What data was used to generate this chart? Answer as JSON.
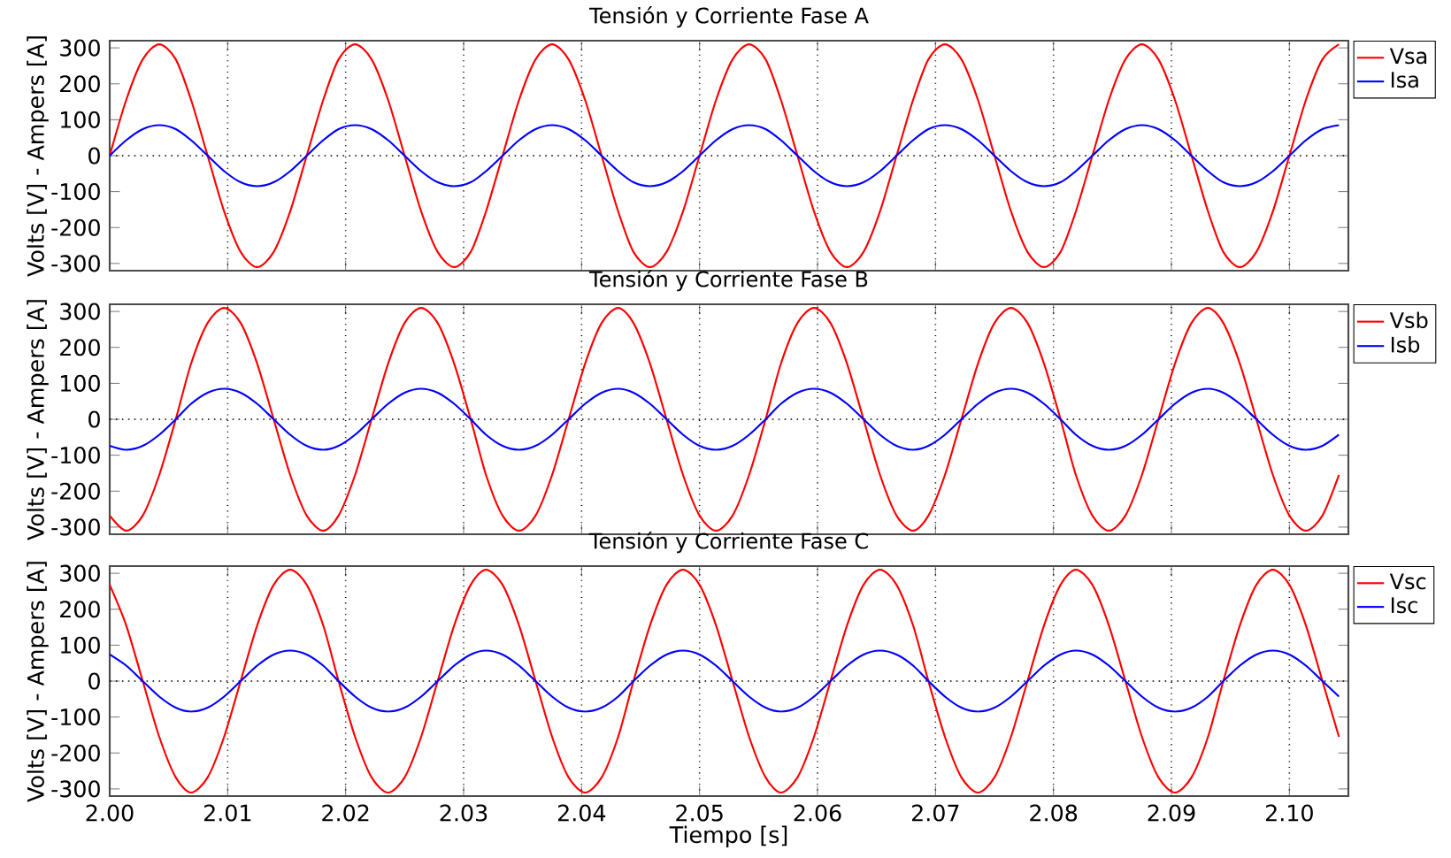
{
  "chart_data": [
    {
      "type": "line",
      "title": "Tensión y Corriente Fase A",
      "ylabel": "Volts [V] - Ampers [A]",
      "xticks": [
        2.0,
        2.01,
        2.02,
        2.03,
        2.04,
        2.05,
        2.06,
        2.07,
        2.08,
        2.09,
        2.1
      ],
      "x": [
        2.0,
        2.0014,
        2.0028,
        2.0042,
        2.0056,
        2.0069,
        2.0083,
        2.0097,
        2.0111,
        2.0125,
        2.0139,
        2.0153,
        2.0167,
        2.0181,
        2.0194,
        2.0208,
        2.0222,
        2.0236,
        2.025,
        2.0264,
        2.0278,
        2.0292,
        2.0306,
        2.0319,
        2.0333,
        2.0347,
        2.0361,
        2.0375,
        2.0389,
        2.0403,
        2.0417,
        2.0431,
        2.0444,
        2.0458,
        2.0472,
        2.0486,
        2.05,
        2.0514,
        2.0528,
        2.0542,
        2.0556,
        2.0569,
        2.0583,
        2.0597,
        2.0611,
        2.0625,
        2.0639,
        2.0653,
        2.0667,
        2.0681,
        2.0694,
        2.0708,
        2.0722,
        2.0736,
        2.075,
        2.0764,
        2.0778,
        2.0792,
        2.0806,
        2.0819,
        2.0833,
        2.0847,
        2.0861,
        2.0875,
        2.0889,
        2.0903,
        2.0917,
        2.0931,
        2.0944,
        2.0958,
        2.0972,
        2.0986,
        2.1,
        2.1014,
        2.1028,
        2.1042
      ],
      "series": [
        {
          "name": "Vsa",
          "color": "#ff0000",
          "values": [
            0,
            155,
            268,
            310,
            268,
            155,
            0,
            -155,
            -268,
            -310,
            -268,
            -155,
            0,
            155,
            268,
            310,
            268,
            155,
            0,
            -155,
            -268,
            -310,
            -268,
            -155,
            0,
            155,
            268,
            310,
            268,
            155,
            0,
            -155,
            -268,
            -310,
            -268,
            -155,
            0,
            155,
            268,
            310,
            268,
            155,
            0,
            -155,
            -268,
            -310,
            -268,
            -155,
            0,
            155,
            268,
            310,
            268,
            155,
            0,
            -155,
            -268,
            -310,
            -268,
            -155,
            0,
            155,
            268,
            310,
            268,
            155,
            0,
            -155,
            -268,
            -310,
            -268,
            -155,
            0,
            155,
            268,
            310
          ]
        },
        {
          "name": "Isa",
          "color": "#0000ff",
          "values": [
            0,
            43,
            74,
            85,
            74,
            43,
            0,
            -43,
            -74,
            -85,
            -74,
            -43,
            0,
            43,
            74,
            85,
            74,
            43,
            0,
            -43,
            -74,
            -85,
            -74,
            -43,
            0,
            43,
            74,
            85,
            74,
            43,
            0,
            -43,
            -74,
            -85,
            -74,
            -43,
            0,
            43,
            74,
            85,
            74,
            43,
            0,
            -43,
            -74,
            -85,
            -74,
            -43,
            0,
            43,
            74,
            85,
            74,
            43,
            0,
            -43,
            -74,
            -85,
            -74,
            -43,
            0,
            43,
            74,
            85,
            74,
            43,
            0,
            -43,
            -74,
            -85,
            -74,
            -43,
            0,
            43,
            74,
            85
          ]
        }
      ],
      "xlim": [
        2.0,
        2.105
      ],
      "ylim": [
        -320,
        320
      ],
      "yticks": [
        -300,
        -200,
        -100,
        0,
        100,
        200,
        300
      ],
      "grid": "x",
      "legend": "top right",
      "tick_labels": "y",
      "ref_lines": [
        {
          "axis": "y",
          "value": 0,
          "label": null,
          "line_style": "dotted",
          "color": "#000000"
        }
      ]
    },
    {
      "type": "line",
      "title": "Tensión y Corriente Fase B",
      "ylabel": "Volts [V] - Ampers [A]",
      "xticks": [
        2.0,
        2.01,
        2.02,
        2.03,
        2.04,
        2.05,
        2.06,
        2.07,
        2.08,
        2.09,
        2.1
      ],
      "x": [
        2.0,
        2.0014,
        2.0028,
        2.0042,
        2.0056,
        2.0069,
        2.0083,
        2.0097,
        2.0111,
        2.0125,
        2.0139,
        2.0153,
        2.0167,
        2.0181,
        2.0194,
        2.0208,
        2.0222,
        2.0236,
        2.025,
        2.0264,
        2.0278,
        2.0292,
        2.0306,
        2.0319,
        2.0333,
        2.0347,
        2.0361,
        2.0375,
        2.0389,
        2.0403,
        2.0417,
        2.0431,
        2.0444,
        2.0458,
        2.0472,
        2.0486,
        2.05,
        2.0514,
        2.0528,
        2.0542,
        2.0556,
        2.0569,
        2.0583,
        2.0597,
        2.0611,
        2.0625,
        2.0639,
        2.0653,
        2.0667,
        2.0681,
        2.0694,
        2.0708,
        2.0722,
        2.0736,
        2.075,
        2.0764,
        2.0778,
        2.0792,
        2.0806,
        2.0819,
        2.0833,
        2.0847,
        2.0861,
        2.0875,
        2.0889,
        2.0903,
        2.0917,
        2.0931,
        2.0944,
        2.0958,
        2.0972,
        2.0986,
        2.1,
        2.1014,
        2.1028,
        2.1042
      ],
      "series": [
        {
          "name": "Vsb",
          "color": "#ff0000",
          "values": [
            -268,
            -310,
            -268,
            -155,
            0,
            155,
            268,
            310,
            268,
            155,
            0,
            -155,
            -268,
            -310,
            -268,
            -155,
            0,
            155,
            268,
            310,
            268,
            155,
            0,
            -155,
            -268,
            -310,
            -268,
            -155,
            0,
            155,
            268,
            310,
            268,
            155,
            0,
            -155,
            -268,
            -310,
            -268,
            -155,
            0,
            155,
            268,
            310,
            268,
            155,
            0,
            -155,
            -268,
            -310,
            -268,
            -155,
            0,
            155,
            268,
            310,
            268,
            155,
            0,
            -155,
            -268,
            -310,
            -268,
            -155,
            0,
            155,
            268,
            310,
            268,
            155,
            0,
            -155,
            -268,
            -310,
            -268,
            -155
          ]
        },
        {
          "name": "Isb",
          "color": "#0000ff",
          "values": [
            -74,
            -85,
            -74,
            -43,
            0,
            43,
            74,
            85,
            74,
            43,
            0,
            -43,
            -74,
            -85,
            -74,
            -43,
            0,
            43,
            74,
            85,
            74,
            43,
            0,
            -43,
            -74,
            -85,
            -74,
            -43,
            0,
            43,
            74,
            85,
            74,
            43,
            0,
            -43,
            -74,
            -85,
            -74,
            -43,
            0,
            43,
            74,
            85,
            74,
            43,
            0,
            -43,
            -74,
            -85,
            -74,
            -43,
            0,
            43,
            74,
            85,
            74,
            43,
            0,
            -43,
            -74,
            -85,
            -74,
            -43,
            0,
            43,
            74,
            85,
            74,
            43,
            0,
            -43,
            -74,
            -85,
            -74,
            -43
          ]
        }
      ],
      "xlim": [
        2.0,
        2.105
      ],
      "ylim": [
        -320,
        320
      ],
      "yticks": [
        -300,
        -200,
        -100,
        0,
        100,
        200,
        300
      ],
      "grid": "x",
      "legend": "top right",
      "tick_labels": "y",
      "ref_lines": [
        {
          "axis": "y",
          "value": 0,
          "label": null,
          "line_style": "dotted",
          "color": "#000000"
        }
      ]
    },
    {
      "type": "line",
      "title": "Tensión y Corriente Fase C",
      "ylabel": "Volts [V] - Ampers [A]",
      "xlabel": "Tiempo [s]",
      "x": [
        2.0,
        2.0014,
        2.0028,
        2.0042,
        2.0056,
        2.0069,
        2.0083,
        2.0097,
        2.0111,
        2.0125,
        2.0139,
        2.0153,
        2.0167,
        2.0181,
        2.0194,
        2.0208,
        2.0222,
        2.0236,
        2.025,
        2.0264,
        2.0278,
        2.0292,
        2.0306,
        2.0319,
        2.0333,
        2.0347,
        2.0361,
        2.0375,
        2.0389,
        2.0403,
        2.0417,
        2.0431,
        2.0444,
        2.0458,
        2.0472,
        2.0486,
        2.05,
        2.0514,
        2.0528,
        2.0542,
        2.0556,
        2.0569,
        2.0583,
        2.0597,
        2.0611,
        2.0625,
        2.0639,
        2.0653,
        2.0667,
        2.0681,
        2.0694,
        2.0708,
        2.0722,
        2.0736,
        2.075,
        2.0764,
        2.0778,
        2.0792,
        2.0806,
        2.0819,
        2.0833,
        2.0847,
        2.0861,
        2.0875,
        2.0889,
        2.0903,
        2.0917,
        2.0931,
        2.0944,
        2.0958,
        2.0972,
        2.0986,
        2.1,
        2.1014,
        2.1028,
        2.1042
      ],
      "series": [
        {
          "name": "Vsc",
          "color": "#ff0000",
          "values": [
            268,
            155,
            0,
            -155,
            -268,
            -310,
            -268,
            -155,
            0,
            155,
            268,
            310,
            268,
            155,
            0,
            -155,
            -268,
            -310,
            -268,
            -155,
            0,
            155,
            268,
            310,
            268,
            155,
            0,
            -155,
            -268,
            -310,
            -268,
            -155,
            0,
            155,
            268,
            310,
            268,
            155,
            0,
            -155,
            -268,
            -310,
            -268,
            -155,
            0,
            155,
            268,
            310,
            268,
            155,
            0,
            -155,
            -268,
            -310,
            -268,
            -155,
            0,
            155,
            268,
            310,
            268,
            155,
            0,
            -155,
            -268,
            -310,
            -268,
            -155,
            0,
            155,
            268,
            310,
            268,
            155,
            0,
            -155
          ]
        },
        {
          "name": "Isc",
          "color": "#0000ff",
          "values": [
            74,
            43,
            0,
            -43,
            -74,
            -85,
            -74,
            -43,
            0,
            43,
            74,
            85,
            74,
            43,
            0,
            -43,
            -74,
            -85,
            -74,
            -43,
            0,
            43,
            74,
            85,
            74,
            43,
            0,
            -43,
            -74,
            -85,
            -74,
            -43,
            0,
            43,
            74,
            85,
            74,
            43,
            0,
            -43,
            -74,
            -85,
            -74,
            -43,
            0,
            43,
            74,
            85,
            74,
            43,
            0,
            -43,
            -74,
            -85,
            -74,
            -43,
            0,
            43,
            74,
            85,
            74,
            43,
            0,
            -43,
            -74,
            -85,
            -74,
            -43,
            0,
            43,
            74,
            85,
            74,
            43,
            0,
            -43
          ]
        }
      ],
      "xlim": [
        2.0,
        2.105
      ],
      "ylim": [
        -320,
        320
      ],
      "xticks": [
        {
          "value": 2.0,
          "label": "2.00"
        },
        {
          "value": 2.01,
          "label": "2.01"
        },
        {
          "value": 2.02,
          "label": "2.02"
        },
        {
          "value": 2.03,
          "label": "2.03"
        },
        {
          "value": 2.04,
          "label": "2.04"
        },
        {
          "value": 2.05,
          "label": "2.05"
        },
        {
          "value": 2.06,
          "label": "2.06"
        },
        {
          "value": 2.07,
          "label": "2.07"
        },
        {
          "value": 2.08,
          "label": "2.08"
        },
        {
          "value": 2.09,
          "label": "2.09"
        },
        {
          "value": 2.1,
          "label": "2.10"
        }
      ],
      "yticks": [
        -300,
        -200,
        -100,
        0,
        100,
        200,
        300
      ],
      "grid": "x",
      "legend": "top right",
      "ref_lines": [
        {
          "axis": "y",
          "value": 0,
          "label": null,
          "line_style": "dotted",
          "color": "#000000"
        }
      ]
    }
  ]
}
